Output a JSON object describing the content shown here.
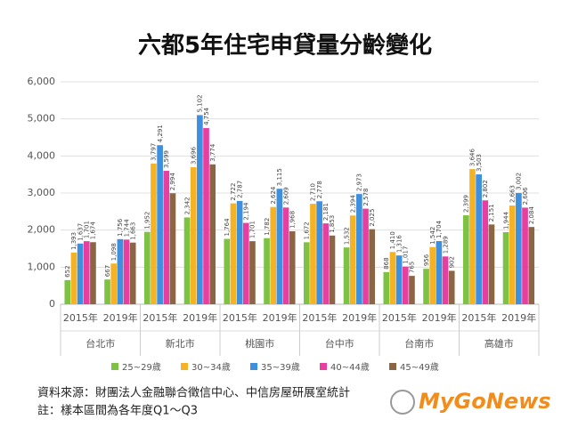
{
  "chart_data": {
    "type": "bar",
    "title": "六都5年住宅申貸量分齡變化",
    "categories": [
      "2015年",
      "2019年",
      "2015年",
      "2019年",
      "2015年",
      "2019年",
      "2015年",
      "2019年",
      "2015年",
      "2019年",
      "2015年",
      "2019年"
    ],
    "groups": [
      "台北市",
      "新北市",
      "桃園市",
      "台中市",
      "台南市",
      "高雄市"
    ],
    "series": [
      {
        "name": "25~29歲",
        "color": "#7dc242",
        "values": [
          652,
          667,
          1952,
          2342,
          1764,
          1782,
          1672,
          1532,
          868,
          956,
          2399,
          1944
        ],
        "value_labels": [
          "652",
          "667",
          "1,952",
          "2,342",
          "1,764",
          "1,782",
          "1,672",
          "1,532",
          "868",
          "956",
          "2,399",
          "1,944"
        ]
      },
      {
        "name": "30~34歲",
        "color": "#f5b324",
        "values": [
          1393,
          1098,
          3797,
          3696,
          2722,
          2624,
          2710,
          2394,
          1410,
          1542,
          3646,
          2663
        ],
        "value_labels": [
          "1,393",
          "1,098",
          "3,797",
          "3,696",
          "2,722",
          "2,624",
          "2,710",
          "2,394",
          "1,410",
          "1,542",
          "3,646",
          "2,663"
        ]
      },
      {
        "name": "35~39歲",
        "color": "#3d8fe0",
        "values": [
          1637,
          1756,
          4291,
          5102,
          2787,
          3115,
          2778,
          2973,
          1316,
          1704,
          3503,
          3002
        ],
        "value_labels": [
          "1,637",
          "1,756",
          "4,291",
          "5,102",
          "2,787",
          "3,115",
          "2,778",
          "2,973",
          "1,316",
          "1,704",
          "3,503",
          "3,002"
        ]
      },
      {
        "name": "40~44歲",
        "color": "#e83ea0",
        "values": [
          1701,
          1744,
          3599,
          4754,
          2194,
          2609,
          2181,
          2578,
          1017,
          1289,
          2802,
          2606
        ],
        "value_labels": [
          "1,701",
          "1,744",
          "3,599",
          "4,754",
          "2,194",
          "2,609",
          "2,181",
          "2,578",
          "1,017",
          "1,289",
          "2,802",
          "2,606"
        ]
      },
      {
        "name": "45~49歲",
        "color": "#8b6544",
        "values": [
          1674,
          1663,
          2994,
          3774,
          1701,
          1968,
          1853,
          2025,
          765,
          902,
          2151,
          2084
        ],
        "value_labels": [
          "1,674",
          "1,663",
          "2,994",
          "3,774",
          "1,701",
          "1,968",
          "1,853",
          "2,025",
          "765",
          "902",
          "2,151",
          "2,084"
        ]
      }
    ],
    "ylim": [
      0,
      6000
    ],
    "yticks": [
      0,
      {
        "value": 1000,
        "label": "1,000"
      },
      {
        "value": 2000,
        "label": "2,000"
      },
      {
        "value": 3000,
        "label": "3,000"
      },
      {
        "value": 4000,
        "label": "4,000"
      },
      {
        "value": 5000,
        "label": "5,000"
      },
      {
        "value": 6000,
        "label": "6,000"
      }
    ],
    "grid": true,
    "source": "資料來源：財團法人金融聯合徵信中心、中信房屋研展室統計",
    "note": "註：樣本區間為各年度Q1～Q3",
    "logo": "MyGoNews"
  }
}
